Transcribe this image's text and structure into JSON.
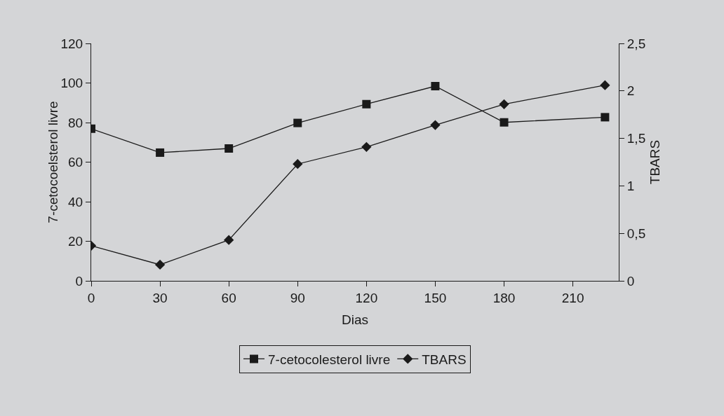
{
  "chart_data": {
    "type": "line",
    "xlabel": "Dias",
    "ylabel": "7-cetocoelsterol livre",
    "y2label": "TBARS",
    "x": [
      0,
      30,
      60,
      90,
      120,
      150,
      180,
      224
    ],
    "series": [
      {
        "name": "7-cetocolesterol livre",
        "color": "#1a1a1a",
        "marker": "square",
        "values": [
          76.9,
          64.8,
          66.9,
          79.8,
          89.3,
          98.4,
          80.1,
          82.7
        ]
      },
      {
        "name": "TBARS",
        "color": "#1a1a1a",
        "marker": "diamond",
        "axis": "y2",
        "values": [
          0.37,
          0.17,
          0.43,
          1.23,
          1.41,
          1.64,
          1.86,
          2.06
        ]
      }
    ],
    "xlim": [
      0,
      230
    ],
    "xticks": [
      0,
      30,
      60,
      90,
      120,
      150,
      180,
      210
    ],
    "ylim": [
      0,
      120
    ],
    "yticks": [
      0,
      20,
      40,
      60,
      80,
      100,
      120
    ],
    "y2lim": [
      0,
      2.5
    ],
    "y2ticks": [
      0,
      {
        "value": 0.5,
        "label": "0,5"
      },
      1,
      {
        "value": 1.5,
        "label": "1,5"
      },
      2,
      {
        "value": 2.5,
        "label": "2,5"
      }
    ],
    "grid": false,
    "legend": "bottom",
    "line_style": "solid"
  }
}
